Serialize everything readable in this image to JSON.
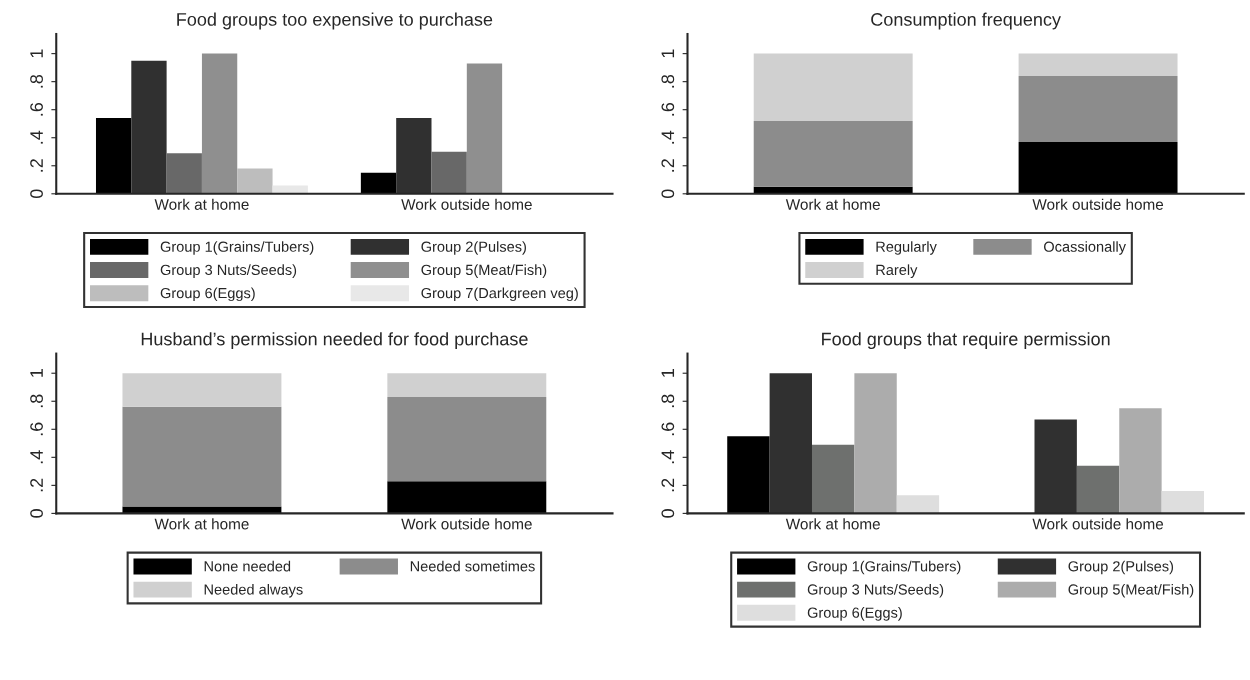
{
  "chart_data": [
    {
      "type": "bar",
      "title": "Food groups too expensive to purchase",
      "categories": [
        "Work at home",
        "Work outside home"
      ],
      "ylim": [
        0,
        1.14
      ],
      "yticks": [
        0,
        {
          "value": 0.2,
          "label": ".2"
        },
        {
          "value": 0.4,
          "label": ".4"
        },
        {
          "value": 0.6,
          "label": ".6"
        },
        {
          "value": 0.8,
          "label": ".8"
        },
        1
      ],
      "grid": false,
      "legend": "bottom",
      "series": [
        {
          "name": "Group 1(Grains/Tubers)",
          "color": "#000000",
          "values": [
            0.54,
            0.15
          ]
        },
        {
          "name": "Group 2(Pulses)",
          "color": "#303030",
          "values": [
            0.95,
            0.54
          ]
        },
        {
          "name": "Group 3 Nuts/Seeds)",
          "color": "#686868",
          "values": [
            0.29,
            0.3
          ]
        },
        {
          "name": "Group 5(Meat/Fish)",
          "color": "#8f8f8f",
          "values": [
            1.0,
            0.93
          ]
        },
        {
          "name": "Group 6(Eggs)",
          "color": "#bdbdbd",
          "values": [
            0.18,
            0
          ]
        },
        {
          "name": "Group 7(Darkgreen veg)",
          "color": "#e8e8e8",
          "values": [
            0.06,
            0
          ]
        }
      ]
    },
    {
      "type": "bar",
      "title": "Consumption frequency",
      "categories": [
        "Work at home",
        "Work outside home"
      ],
      "stacked": true,
      "ylim": [
        0,
        1.14
      ],
      "yticks": [
        0,
        {
          "value": 0.2,
          "label": ".2"
        },
        {
          "value": 0.4,
          "label": ".4"
        },
        {
          "value": 0.6,
          "label": ".6"
        },
        {
          "value": 0.8,
          "label": ".8"
        },
        1
      ],
      "grid": false,
      "legend": "bottom",
      "series": [
        {
          "name": "Regularly",
          "color": "#000000",
          "values": [
            0.05,
            0.37
          ]
        },
        {
          "name": "Ocassionally",
          "color": "#8c8c8c",
          "values": [
            0.47,
            0.47
          ]
        },
        {
          "name": "Rarely",
          "color": "#d0d0d0",
          "values": [
            0.48,
            0.16
          ]
        }
      ]
    },
    {
      "type": "bar",
      "title": "Husband’s permission needed for food purchase",
      "categories": [
        "Work at home",
        "Work outside home"
      ],
      "stacked": true,
      "ylim": [
        0,
        1.14
      ],
      "yticks": [
        0,
        {
          "value": 0.2,
          "label": ".2"
        },
        {
          "value": 0.4,
          "label": ".4"
        },
        {
          "value": 0.6,
          "label": ".6"
        },
        {
          "value": 0.8,
          "label": ".8"
        },
        1
      ],
      "grid": false,
      "legend": "bottom",
      "series": [
        {
          "name": "None needed",
          "color": "#000000",
          "values": [
            0.05,
            0.23
          ]
        },
        {
          "name": "Needed sometimes",
          "color": "#8c8c8c",
          "values": [
            0.71,
            0.6
          ]
        },
        {
          "name": "Needed always",
          "color": "#d0d0d0",
          "values": [
            0.24,
            0.17
          ]
        }
      ]
    },
    {
      "type": "bar",
      "title": "Food groups that require permission",
      "categories": [
        "Work at home",
        "Work outside home"
      ],
      "ylim": [
        0,
        1.14
      ],
      "yticks": [
        0,
        {
          "value": 0.2,
          "label": ".2"
        },
        {
          "value": 0.4,
          "label": ".4"
        },
        {
          "value": 0.6,
          "label": ".6"
        },
        {
          "value": 0.8,
          "label": ".8"
        },
        1
      ],
      "grid": false,
      "legend": "bottom",
      "series": [
        {
          "name": "Group 1(Grains/Tubers)",
          "color": "#000000",
          "values": [
            0.55,
            0
          ]
        },
        {
          "name": "Group 2(Pulses)",
          "color": "#303030",
          "values": [
            1.0,
            0.67
          ]
        },
        {
          "name": "Group 3 Nuts/Seeds)",
          "color": "#6e706e",
          "values": [
            0.49,
            0.34
          ]
        },
        {
          "name": "Group 5(Meat/Fish)",
          "color": "#acacac",
          "values": [
            1.0,
            0.75
          ]
        },
        {
          "name": "Group 6(Eggs)",
          "color": "#dedede",
          "values": [
            0.13,
            0.16
          ]
        }
      ]
    }
  ]
}
